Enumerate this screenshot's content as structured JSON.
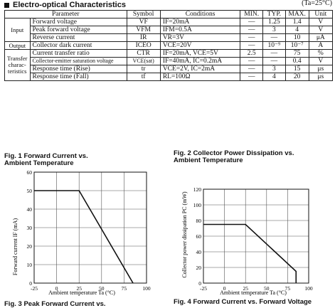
{
  "section": {
    "title": "Electro-optical Characteristics",
    "condition": "(Ta=25°C)"
  },
  "table": {
    "headers": [
      "Parameter",
      "Symbol",
      "Conditions",
      "MIN.",
      "TYP.",
      "MAX.",
      "Unit"
    ],
    "groups": {
      "input": "Input",
      "output": "Output",
      "transfer_1": "Transfer",
      "transfer_2": "charac-",
      "transfer_3": "teristics"
    },
    "rows": [
      {
        "param": "Forward voltage",
        "symbol": "VF",
        "cond": "IF=20mA",
        "min": "—",
        "typ": "1.25",
        "max": "1.4",
        "unit": "V"
      },
      {
        "param": "Peak forward voltage",
        "symbol": "VFM",
        "cond": "IFM=0.5A",
        "min": "—",
        "typ": "3",
        "max": "4",
        "unit": "V"
      },
      {
        "param": "Reverse current",
        "symbol": "IR",
        "cond": "VR=3V",
        "min": "—",
        "typ": "—",
        "max": "10",
        "unit": "μA"
      },
      {
        "param": "Collector dark current",
        "symbol": "ICEO",
        "cond": "VCE=20V",
        "min": "—",
        "typ": "10⁻⁹",
        "max": "10⁻⁷",
        "unit": "A"
      },
      {
        "param": "Current transfer ratio",
        "symbol": "CTR",
        "cond": "IF=20mA, VCE=5V",
        "min": "2.5",
        "typ": "—",
        "max": "75",
        "unit": "%"
      },
      {
        "param": "Collector-emitter saturation voltage",
        "symbol": "VCE(sat)",
        "cond": "IF=40mA, IC=0.2mA",
        "min": "—",
        "typ": "—",
        "max": "0.4",
        "unit": "V"
      },
      {
        "param": "Response time (Rise)",
        "symbol": "tr",
        "cond": "VCE=2V, IC=2mA",
        "min": "—",
        "typ": "3",
        "max": "15",
        "unit": "μs"
      },
      {
        "param": "Response time (Fall)",
        "symbol": "tf",
        "cond": "RL=100Ω",
        "min": "—",
        "typ": "4",
        "max": "20",
        "unit": "μs"
      }
    ]
  },
  "figures": {
    "fig1": {
      "title_1": "Fig. 1   Forward Current vs.",
      "title_2": "Ambient Temperature"
    },
    "fig2": {
      "title_1": "Fig. 2   Collector Power Dissipation vs.",
      "title_2": "Ambient Temperature"
    },
    "fig3": {
      "title_1": "Fig. 3   Peak Forward Current vs."
    },
    "fig4": {
      "title_1": "Fig. 4   Forward Current vs. Forward Voltage"
    }
  },
  "chart_data": [
    {
      "type": "line",
      "xlabel": "Ambient temperature Ta (°C)",
      "ylabel": "Forward current IF (mA)",
      "xlim": [
        -25,
        100
      ],
      "ylim": [
        0,
        60
      ],
      "xticks": [
        "-25",
        "0",
        "25",
        "50",
        "75",
        "100"
      ],
      "yticks": [
        "0",
        "10",
        "20",
        "30",
        "40",
        "50",
        "60"
      ],
      "x": [
        -25,
        25,
        85,
        85
      ],
      "y": [
        50,
        50,
        0,
        0
      ],
      "grid": true
    },
    {
      "type": "line",
      "xlabel": "Ambient temperature Ta (°C)",
      "ylabel": "Collector power dissipation PC (mW)",
      "xlim": [
        -25,
        100
      ],
      "ylim": [
        0,
        120
      ],
      "xticks": [
        "-25",
        "0",
        "25",
        "50",
        "75",
        "100"
      ],
      "yticks": [
        "0",
        "20",
        "40",
        "60",
        "80",
        "100",
        "120"
      ],
      "x": [
        -25,
        25,
        85,
        85
      ],
      "y": [
        75,
        75,
        15,
        0
      ],
      "grid": true
    }
  ]
}
